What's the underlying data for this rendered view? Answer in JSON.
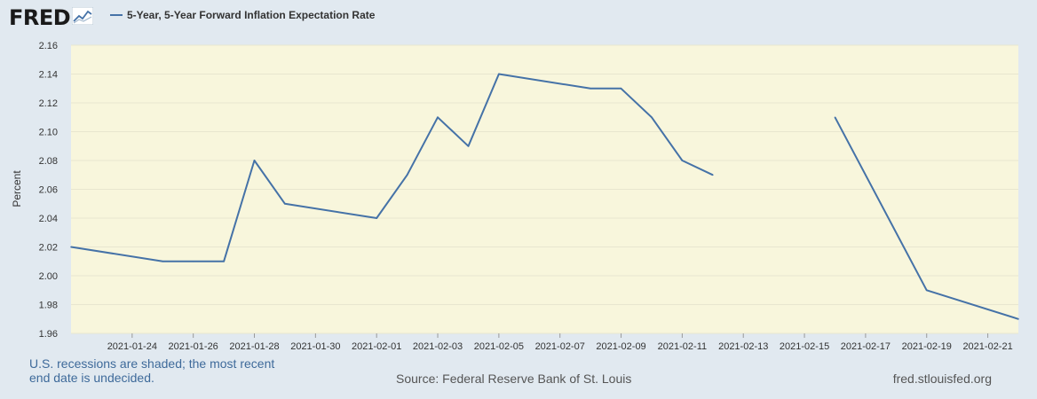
{
  "header": {
    "logo_text": "FRED",
    "logo_icon": "line-chart-icon",
    "legend_label": "5-Year, 5-Year Forward Inflation Expectation Rate"
  },
  "colors": {
    "background": "#e1e9f0",
    "plot_background": "#f8f6dc",
    "series_line": "#4572a7",
    "gridline": "#e8e6cf"
  },
  "chart_data": {
    "type": "line",
    "title": "",
    "ylabel": "Percent",
    "xlabel": "",
    "ylim": [
      1.96,
      2.16
    ],
    "xlim": [
      "2021-01-22",
      "2021-02-22"
    ],
    "yticks": [
      "1.96",
      "1.98",
      "2.00",
      "2.02",
      "2.04",
      "2.06",
      "2.08",
      "2.10",
      "2.12",
      "2.14",
      "2.16"
    ],
    "xticks": [
      "2021-01-24",
      "2021-01-26",
      "2021-01-28",
      "2021-01-30",
      "2021-02-01",
      "2021-02-03",
      "2021-02-05",
      "2021-02-07",
      "2021-02-09",
      "2021-02-11",
      "2021-02-13",
      "2021-02-15",
      "2021-02-17",
      "2021-02-19",
      "2021-02-21"
    ],
    "grid": true,
    "legend": "top-left",
    "series": [
      {
        "name": "5-Year, 5-Year Forward Inflation Expectation Rate",
        "segments": [
          [
            {
              "x": "2021-01-22",
              "y": 2.02
            },
            {
              "x": "2021-01-25",
              "y": 2.01
            },
            {
              "x": "2021-01-26",
              "y": 2.01
            },
            {
              "x": "2021-01-27",
              "y": 2.01
            },
            {
              "x": "2021-01-28",
              "y": 2.08
            },
            {
              "x": "2021-01-29",
              "y": 2.05
            },
            {
              "x": "2021-02-01",
              "y": 2.04
            },
            {
              "x": "2021-02-02",
              "y": 2.07
            },
            {
              "x": "2021-02-03",
              "y": 2.11
            },
            {
              "x": "2021-02-04",
              "y": 2.09
            },
            {
              "x": "2021-02-05",
              "y": 2.14
            },
            {
              "x": "2021-02-08",
              "y": 2.13
            },
            {
              "x": "2021-02-09",
              "y": 2.13
            },
            {
              "x": "2021-02-10",
              "y": 2.11
            },
            {
              "x": "2021-02-11",
              "y": 2.08
            },
            {
              "x": "2021-02-12",
              "y": 2.07
            }
          ],
          [
            {
              "x": "2021-02-16",
              "y": 2.11
            },
            {
              "x": "2021-02-19",
              "y": 1.99
            },
            {
              "x": "2021-02-22",
              "y": 1.97
            }
          ]
        ]
      }
    ]
  },
  "footer": {
    "recession_note": "U.S. recessions are shaded; the most recent end date is undecided.",
    "source": "Source: Federal Reserve Bank of St. Louis",
    "site": "fred.stlouisfed.org"
  }
}
